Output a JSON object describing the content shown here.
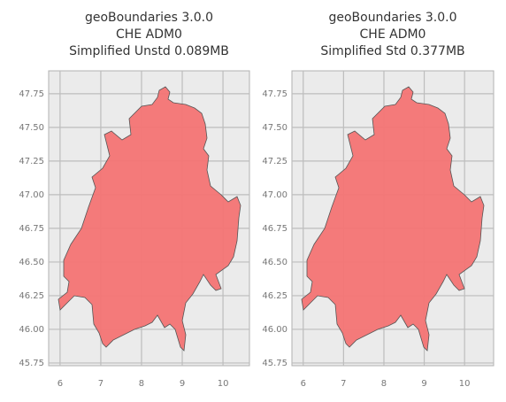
{
  "chart_data": [
    {
      "type": "map",
      "title": [
        "geoBoundaries 3.0.0",
        "CHE ADM0",
        "Simplified Unstd 0.089MB"
      ],
      "xlim": [
        5.72,
        10.65
      ],
      "ylim": [
        45.73,
        47.92
      ],
      "xticks": [
        6,
        7,
        8,
        9,
        10
      ],
      "yticks": [
        45.75,
        {
          "value": 46.0,
          "label": "46.00"
        },
        46.25,
        {
          "value": 46.5,
          "label": "46.50"
        },
        46.75,
        {
          "value": 47.0,
          "label": "47.00"
        },
        47.25,
        {
          "value": 47.5,
          "label": "47.50"
        },
        47.75
      ],
      "color": "#f47474",
      "grid": true
    },
    {
      "type": "map",
      "title": [
        "geoBoundaries 3.0.0",
        "CHE ADM0",
        "Simplified Std 0.377MB"
      ],
      "xlim": [
        5.72,
        10.72
      ],
      "ylim": [
        45.73,
        47.92
      ],
      "xticks": [
        6,
        7,
        8,
        9,
        10
      ],
      "yticks": [
        45.75,
        {
          "value": 46.0,
          "label": "46.00"
        },
        46.25,
        {
          "value": 46.5,
          "label": "46.50"
        },
        46.75,
        {
          "value": 47.0,
          "label": "47.00"
        },
        47.25,
        {
          "value": 47.5,
          "label": "47.50"
        },
        47.75
      ],
      "color": "#f47474",
      "grid": true
    }
  ]
}
